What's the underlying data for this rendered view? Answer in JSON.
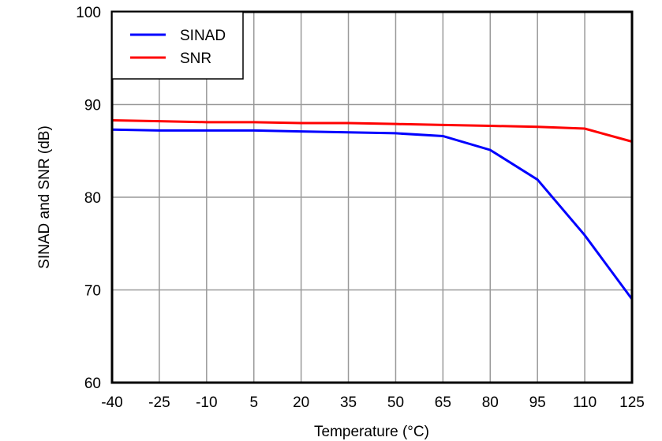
{
  "chart_data": {
    "type": "line",
    "title": "",
    "xlabel": "Temperature (°C)",
    "ylabel": "SINAD and SNR (dB)",
    "xlim": [
      -40,
      125
    ],
    "ylim": [
      60,
      100
    ],
    "xticks": [
      -40,
      -25,
      -10,
      5,
      20,
      35,
      50,
      65,
      80,
      95,
      110,
      125
    ],
    "yticks": [
      60,
      70,
      80,
      90,
      100
    ],
    "grid": true,
    "legend": "top-left",
    "x": [
      -40,
      -25,
      -10,
      5,
      20,
      35,
      50,
      65,
      80,
      95,
      110,
      125
    ],
    "series": [
      {
        "name": "SINAD",
        "color": "#0000ff",
        "values": [
          87.3,
          87.2,
          87.2,
          87.2,
          87.1,
          87.0,
          86.9,
          86.6,
          85.1,
          81.9,
          75.9,
          69.0
        ]
      },
      {
        "name": "SNR",
        "color": "#ff0000",
        "values": [
          88.3,
          88.2,
          88.1,
          88.1,
          88.0,
          88.0,
          87.9,
          87.8,
          87.7,
          87.6,
          87.4,
          86.0
        ]
      }
    ]
  }
}
